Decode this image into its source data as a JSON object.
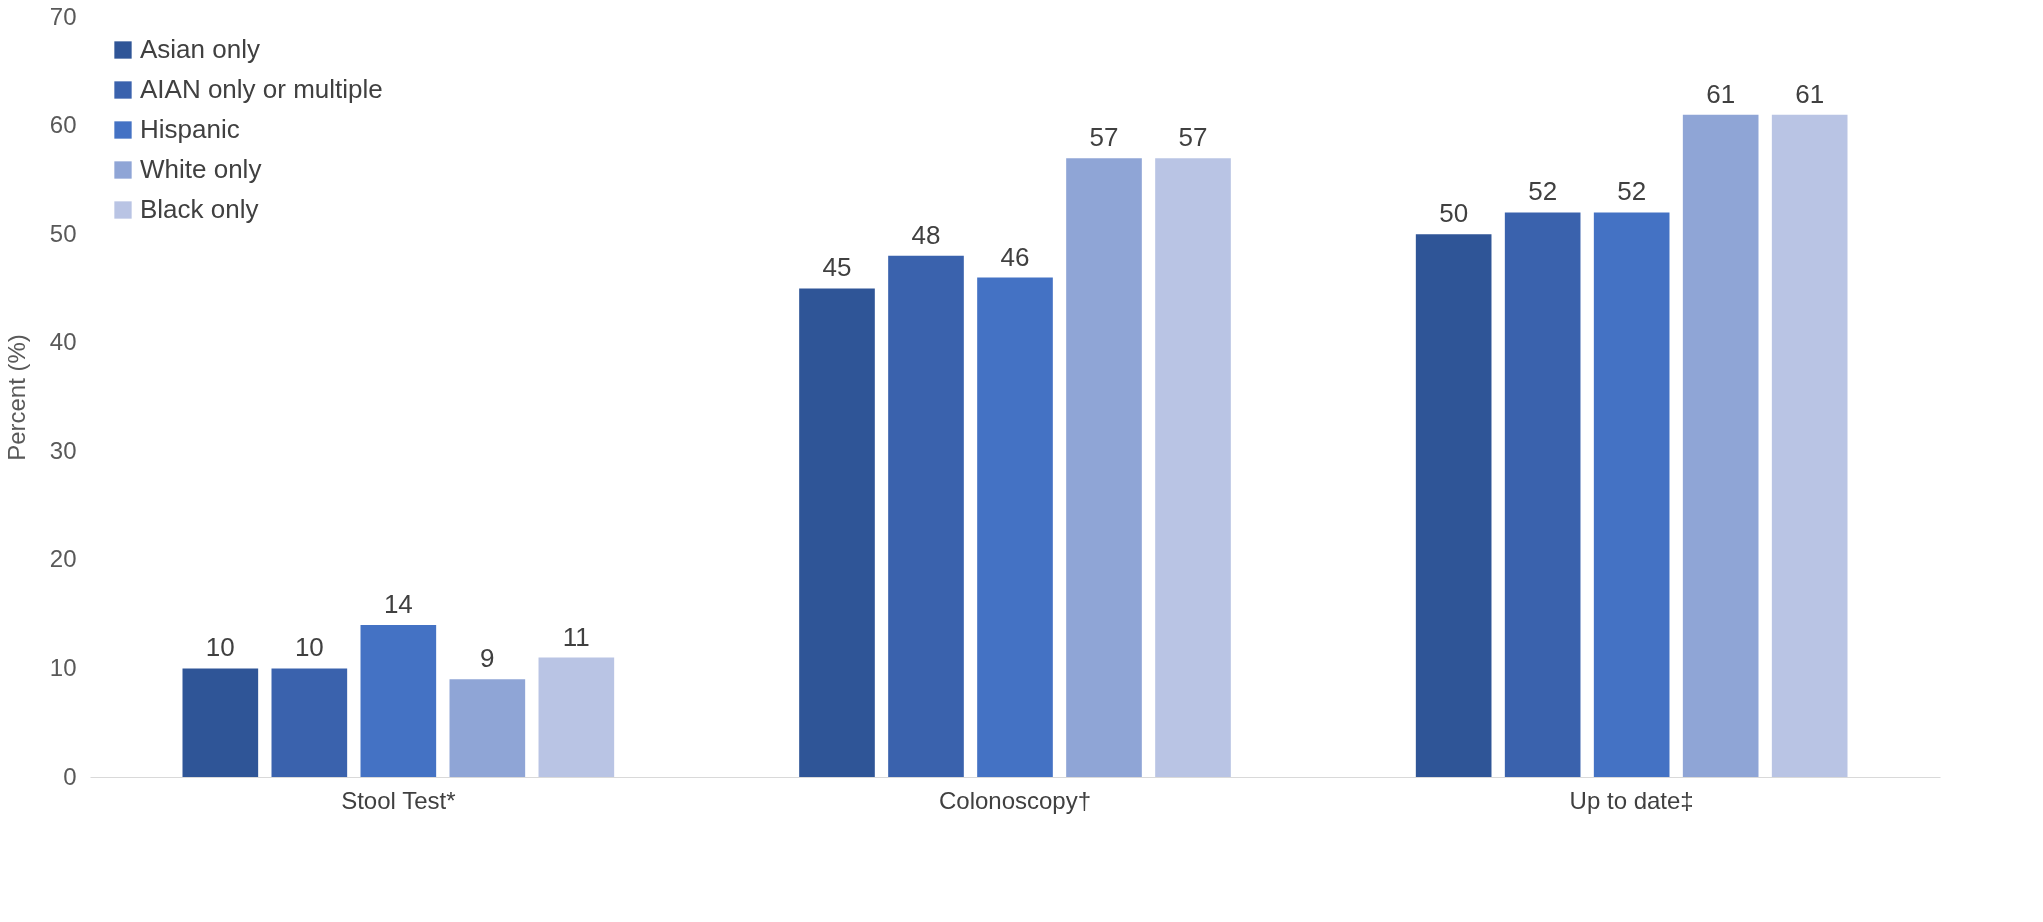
{
  "chart_data": {
    "type": "bar",
    "ylabel": "Percent (%)",
    "categories": [
      "Stool Test*",
      "Colonoscopy†",
      "Up to date‡"
    ],
    "series": [
      {
        "name": "Asian only",
        "color": "#2f5597",
        "values": [
          10,
          45,
          50
        ]
      },
      {
        "name": "AIAN only or multiple",
        "color": "#3a62ad",
        "values": [
          10,
          48,
          52
        ]
      },
      {
        "name": "Hispanic",
        "color": "#4472c4",
        "values": [
          14,
          46,
          52
        ]
      },
      {
        "name": "White only",
        "color": "#8fa5d6",
        "values": [
          9,
          57,
          61
        ]
      },
      {
        "name": "Black only",
        "color": "#b9c4e4",
        "values": [
          11,
          57,
          61
        ]
      }
    ],
    "ylim": [
      0,
      70
    ],
    "yticks": [
      0,
      10,
      20,
      30,
      40,
      50,
      60,
      70
    ],
    "grid": false,
    "legend": "top left",
    "data_labels": true
  }
}
